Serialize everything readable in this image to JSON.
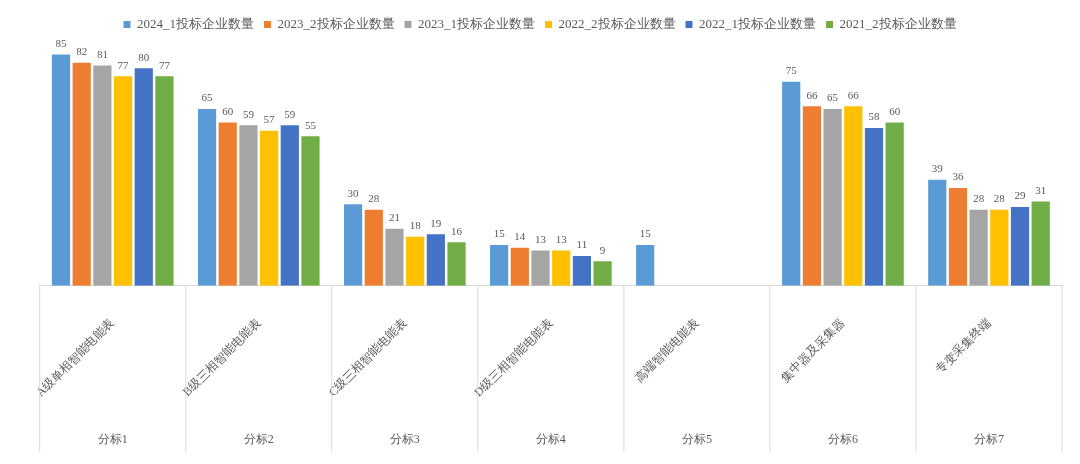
{
  "chart_data": {
    "type": "bar",
    "categories": [
      "A级单相智能电能表",
      "B级三相智能电能表",
      "C级三相智能电能表",
      "D级三相智能电能表",
      "高端智能电能表",
      "集中器及采集器",
      "专变采集终端"
    ],
    "series": [
      {
        "name": "2024_1投标企业数量",
        "color": "#5b9bd5",
        "values": [
          85,
          65,
          30,
          15,
          15,
          75,
          39
        ]
      },
      {
        "name": "2023_2投标企业数量",
        "color": "#ed7d31",
        "values": [
          82,
          60,
          28,
          14,
          null,
          66,
          36
        ]
      },
      {
        "name": "2023_1投标企业数量",
        "color": "#a5a5a5",
        "values": [
          81,
          59,
          21,
          13,
          null,
          65,
          28
        ]
      },
      {
        "name": "2022_2投标企业数量",
        "color": "#ffc000",
        "values": [
          77,
          57,
          18,
          13,
          null,
          66,
          28
        ]
      },
      {
        "name": "2022_1投标企业数量",
        "color": "#4472c4",
        "values": [
          80,
          59,
          19,
          11,
          null,
          58,
          29
        ]
      },
      {
        "name": "2021_2投标企业数量",
        "color": "#70ad47",
        "values": [
          77,
          55,
          16,
          9,
          null,
          60,
          31
        ]
      }
    ],
    "annotations": [
      "分标1",
      "分标2",
      "分标3",
      "分标4",
      "分标5",
      "分标6",
      "分标7"
    ],
    "data_labels": true,
    "legend": "top",
    "grid": false
  }
}
